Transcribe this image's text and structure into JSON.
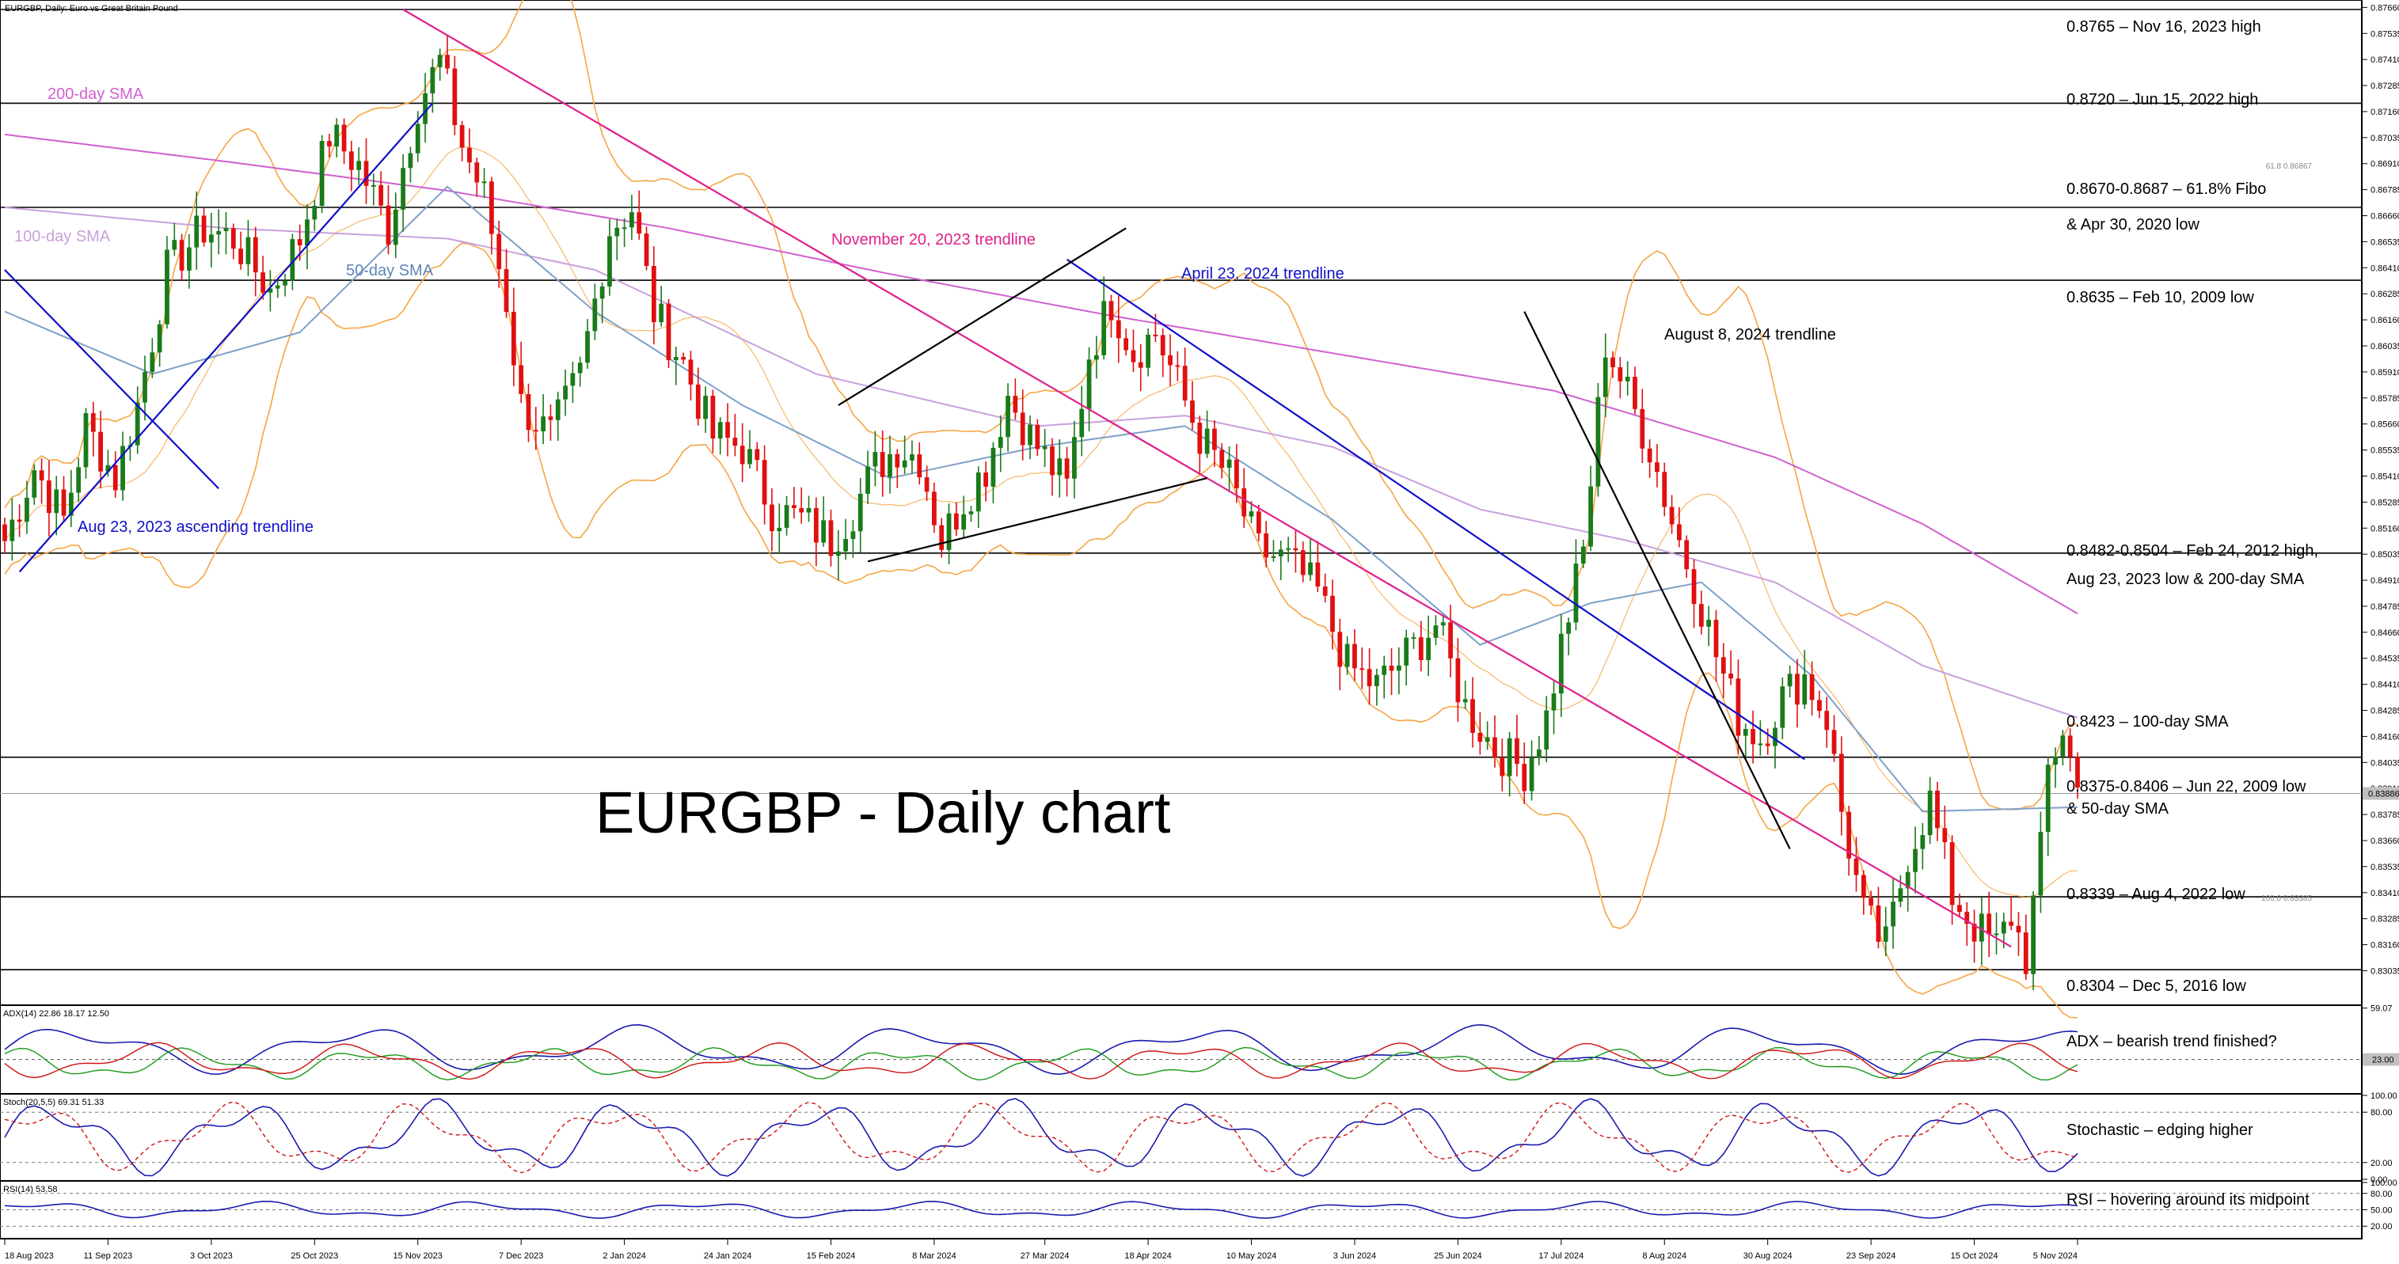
{
  "header": {
    "title": "EURGBP, Daily:  Euro vs Great Britain Pound",
    "big_title": "EURGBP - Daily chart"
  },
  "colors": {
    "bull": "#1a7a1a",
    "bear": "#e01010",
    "sma200": "#d060d0",
    "sma100": "#c9a0dc",
    "sma50": "#7ea0c8",
    "bollinger": "#f5a544",
    "trend_blue": "#1010c8",
    "trend_pink": "#e0208a",
    "trend_black": "#000000"
  },
  "chart_data": [
    {
      "type": "candlestick",
      "panel": "price",
      "ylim": [
        0.829,
        0.8765
      ],
      "y_ticks": [
        "0.87660",
        "0.87535",
        "0.87410",
        "0.87285",
        "0.87160",
        "0.87035",
        "0.86910",
        "0.86785",
        "0.86660",
        "0.86535",
        "0.86410",
        "0.86285",
        "0.86160",
        "0.86035",
        "0.85910",
        "0.85785",
        "0.85660",
        "0.85535",
        "0.85410",
        "0.85285",
        "0.85160",
        "0.85035",
        "0.84910",
        "0.84785",
        "0.84660",
        "0.84535",
        "0.84410",
        "0.84285",
        "0.84160",
        "0.84035",
        "0.83910",
        "0.83785",
        "0.83660",
        "0.83535",
        "0.83410",
        "0.83285",
        "0.83160",
        "0.83035"
      ],
      "current_price": "0.83886",
      "fibo_labels": [
        {
          "text": "61.8 0.86867",
          "y": 0.86867
        },
        {
          "text": "100.0 0.83385",
          "y": 0.83385
        }
      ],
      "x_ticks": [
        "18 Aug 2023",
        "11 Sep 2023",
        "3 Oct 2023",
        "25 Oct 2023",
        "15 Nov 2023",
        "7 Dec 2023",
        "2 Jan 2024",
        "24 Jan 2024",
        "15 Feb 2024",
        "8 Mar 2024",
        "27 Mar 2024",
        "18 Apr 2024",
        "10 May 2024",
        "3 Jun 2024",
        "25 Jun 2024",
        "17 Jul 2024",
        "8 Aug 2024",
        "30 Aug 2024",
        "23 Sep 2024",
        "15 Oct 2024",
        "5 Nov 2024"
      ],
      "close_anchors": [
        [
          0,
          0.851
        ],
        [
          4,
          0.8545
        ],
        [
          8,
          0.852
        ],
        [
          11,
          0.8565
        ],
        [
          15,
          0.854
        ],
        [
          18,
          0.8575
        ],
        [
          22,
          0.864
        ],
        [
          27,
          0.866
        ],
        [
          31,
          0.8655
        ],
        [
          36,
          0.863
        ],
        [
          40,
          0.8655
        ],
        [
          44,
          0.8705
        ],
        [
          48,
          0.869
        ],
        [
          52,
          0.866
        ],
        [
          56,
          0.872
        ],
        [
          59,
          0.874
        ],
        [
          62,
          0.87
        ],
        [
          65,
          0.8675
        ],
        [
          68,
          0.8625
        ],
        [
          70,
          0.8575
        ],
        [
          74,
          0.856
        ],
        [
          78,
          0.859
        ],
        [
          82,
          0.866
        ],
        [
          85,
          0.867
        ],
        [
          88,
          0.862
        ],
        [
          92,
          0.8595
        ],
        [
          96,
          0.856
        ],
        [
          100,
          0.8555
        ],
        [
          104,
          0.8525
        ],
        [
          108,
          0.852
        ],
        [
          112,
          0.851
        ],
        [
          115,
          0.8525
        ],
        [
          118,
          0.8545
        ],
        [
          121,
          0.8555
        ],
        [
          124,
          0.855
        ],
        [
          127,
          0.851
        ],
        [
          130,
          0.853
        ],
        [
          133,
          0.8545
        ],
        [
          136,
          0.858
        ],
        [
          139,
          0.856
        ],
        [
          142,
          0.8545
        ],
        [
          144,
          0.8535
        ],
        [
          147,
          0.86
        ],
        [
          150,
          0.8625
        ],
        [
          153,
          0.86
        ],
        [
          156,
          0.861
        ],
        [
          159,
          0.8585
        ],
        [
          162,
          0.856
        ],
        [
          166,
          0.854
        ],
        [
          170,
          0.8505
        ],
        [
          174,
          0.85
        ],
        [
          178,
          0.8485
        ],
        [
          182,
          0.845
        ],
        [
          186,
          0.844
        ],
        [
          190,
          0.8455
        ],
        [
          194,
          0.847
        ],
        [
          198,
          0.843
        ],
        [
          202,
          0.841
        ],
        [
          206,
          0.84
        ],
        [
          209,
          0.8425
        ],
        [
          211,
          0.846
        ],
        [
          214,
          0.8505
        ],
        [
          217,
          0.8605
        ],
        [
          220,
          0.858
        ],
        [
          223,
          0.8555
        ],
        [
          226,
          0.852
        ],
        [
          229,
          0.849
        ],
        [
          232,
          0.8455
        ],
        [
          235,
          0.8425
        ],
        [
          238,
          0.8415
        ],
        [
          241,
          0.8435
        ],
        [
          244,
          0.8445
        ],
        [
          247,
          0.8425
        ],
        [
          249,
          0.838
        ],
        [
          252,
          0.833
        ],
        [
          255,
          0.8315
        ],
        [
          258,
          0.836
        ],
        [
          261,
          0.8385
        ],
        [
          264,
          0.834
        ],
        [
          267,
          0.8325
        ],
        [
          270,
          0.8315
        ],
        [
          272,
          0.833
        ],
        [
          274,
          0.831
        ],
        [
          276,
          0.836
        ],
        [
          277,
          0.84
        ],
        [
          279,
          0.842
        ],
        [
          281,
          0.839
        ]
      ],
      "sma200_anchors": [
        [
          0,
          0.8705
        ],
        [
          30,
          0.8692
        ],
        [
          60,
          0.8678
        ],
        [
          90,
          0.866
        ],
        [
          120,
          0.8638
        ],
        [
          150,
          0.8618
        ],
        [
          180,
          0.86
        ],
        [
          210,
          0.8582
        ],
        [
          240,
          0.855
        ],
        [
          260,
          0.8518
        ],
        [
          281,
          0.8475
        ]
      ],
      "sma100_anchors": [
        [
          0,
          0.867
        ],
        [
          30,
          0.866
        ],
        [
          60,
          0.8655
        ],
        [
          80,
          0.864
        ],
        [
          110,
          0.859
        ],
        [
          140,
          0.8565
        ],
        [
          160,
          0.857
        ],
        [
          180,
          0.8555
        ],
        [
          200,
          0.8525
        ],
        [
          220,
          0.851
        ],
        [
          240,
          0.849
        ],
        [
          260,
          0.845
        ],
        [
          281,
          0.8425
        ]
      ],
      "sma50_anchors": [
        [
          0,
          0.862
        ],
        [
          20,
          0.859
        ],
        [
          40,
          0.861
        ],
        [
          60,
          0.868
        ],
        [
          80,
          0.862
        ],
        [
          100,
          0.8575
        ],
        [
          120,
          0.854
        ],
        [
          140,
          0.8555
        ],
        [
          160,
          0.8565
        ],
        [
          180,
          0.852
        ],
        [
          200,
          0.846
        ],
        [
          215,
          0.848
        ],
        [
          230,
          0.849
        ],
        [
          245,
          0.8445
        ],
        [
          260,
          0.838
        ],
        [
          281,
          0.8382
        ]
      ],
      "levels": [
        {
          "y": 0.8765,
          "text": "0.8765 – Nov 16, 2023 high"
        },
        {
          "y": 0.872,
          "text": "0.8720 – Jun 15, 2022 high"
        },
        {
          "y": 0.867,
          "text": "0.8670-0.8687 – 61.8% Fibo",
          "text2": "& Apr 30, 2020 low"
        },
        {
          "y": 0.8635,
          "text": "0.8635 – Feb 10, 2009 low"
        },
        {
          "y": 0.8504,
          "text": "0.8482-0.8504 – Feb 24, 2012 high,",
          "text2": "Aug 23, 2023 low & 200-day SMA"
        },
        {
          "y": 0.8406,
          "text": "0.8423 – 100-day SMA",
          "label_y": 0.8423
        },
        {
          "y": 0.8406,
          "text": "0.8375-0.8406 – Jun 22, 2009 low",
          "text2": "& 50-day SMA",
          "label_only": true
        },
        {
          "y": 0.8339,
          "text": "0.8339 – Aug 4, 2022 low"
        },
        {
          "y": 0.8304,
          "text": "0.8304 – Dec 5, 2016 low"
        }
      ],
      "trendlines": [
        {
          "name": "aug23-ascending",
          "label": "Aug 23, 2023 ascending trendline",
          "color": "trend_blue",
          "from": [
            2,
            0.8495
          ],
          "to": [
            58,
            0.872
          ]
        },
        {
          "name": "aug23-blue-down",
          "label": "",
          "color": "trend_blue",
          "from": [
            0,
            0.864
          ],
          "to": [
            29,
            0.8535
          ]
        },
        {
          "name": "nov20-2023",
          "label": "November 20, 2023 trendline",
          "color": "trend_pink",
          "from": [
            54,
            0.8765
          ],
          "to": [
            272,
            0.8315
          ]
        },
        {
          "name": "apr23-2024",
          "label": "April 23, 2024 trendline",
          "color": "trend_blue",
          "from": [
            144,
            0.8645
          ],
          "to": [
            244,
            0.8405
          ]
        },
        {
          "name": "aug8-2024",
          "label": "August 8, 2024 trendline",
          "color": "trend_black",
          "from": [
            206,
            0.862
          ],
          "to": [
            242,
            0.8362
          ]
        },
        {
          "name": "wedge-upper",
          "label": "",
          "color": "trend_black",
          "from": [
            113,
            0.8575
          ],
          "to": [
            152,
            0.866
          ]
        },
        {
          "name": "wedge-lower",
          "label": "",
          "color": "trend_black",
          "from": [
            117,
            0.85
          ],
          "to": [
            163,
            0.854
          ]
        }
      ],
      "sma_labels": [
        {
          "text": "200-day SMA",
          "color": "sma200"
        },
        {
          "text": "100-day SMA",
          "color": "sma100"
        },
        {
          "text": "50-day SMA",
          "color": "sma50"
        }
      ]
    },
    {
      "type": "line",
      "panel": "adx",
      "title": "ADX(14) 22.86 18.17 12.50",
      "ylim": [
        0,
        60
      ],
      "y_ticks": [
        "59.07",
        "23.00"
      ],
      "current": "23.00",
      "annotation": "ADX – bearish trend finished?"
    },
    {
      "type": "line",
      "panel": "stoch",
      "title": "Stoch(20,5,5) 69.31 51.33",
      "ylim": [
        0,
        100
      ],
      "y_ticks": [
        "100.00",
        "80.00",
        "20.00",
        "0.00"
      ],
      "annotation": "Stochastic – edging higher"
    },
    {
      "type": "line",
      "panel": "rsi",
      "title": "RSI(14) 53.58",
      "ylim": [
        0,
        100
      ],
      "y_ticks": [
        "100.00",
        "80.00",
        "50.00",
        "20.00"
      ],
      "annotation": "RSI – hovering around its midpoint"
    }
  ]
}
